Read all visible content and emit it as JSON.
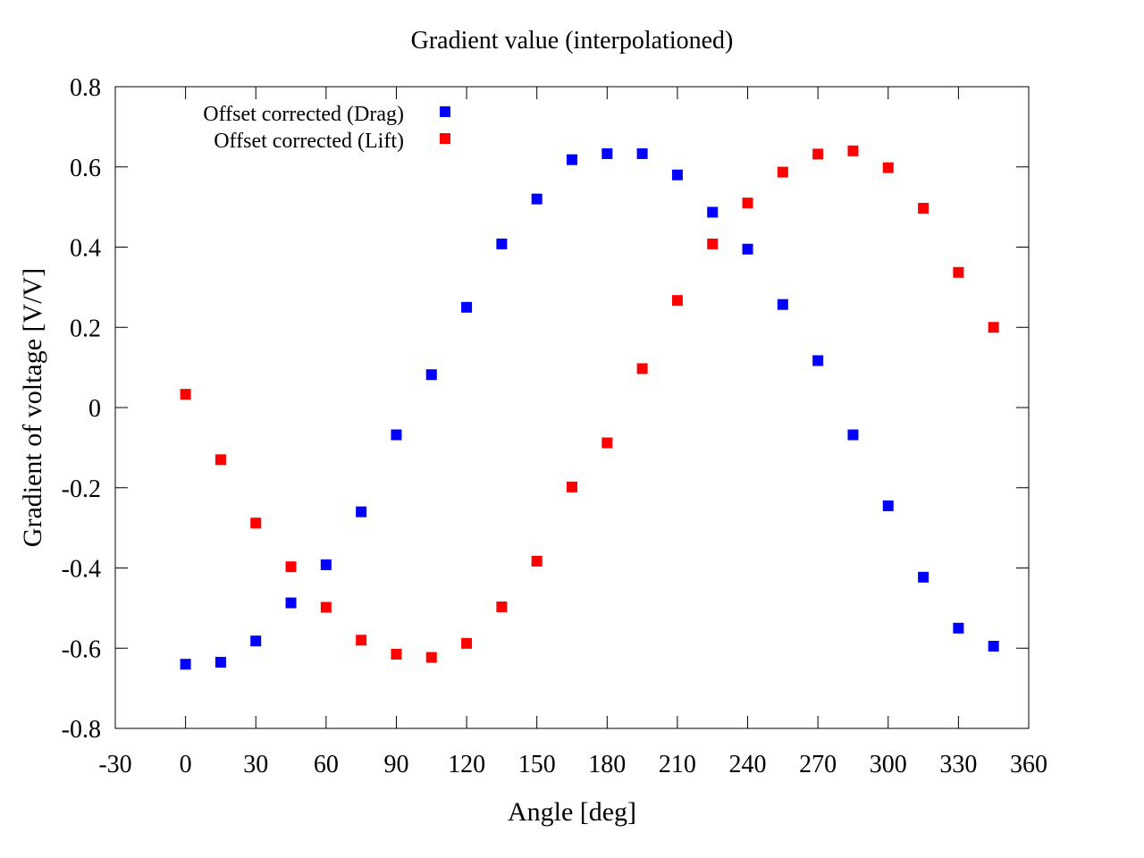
{
  "chart_data": {
    "type": "scatter",
    "title": "Gradient value (interpolationed)",
    "xlabel": "Angle [deg]",
    "ylabel": "Gradient of voltage [V/V]",
    "xlim": [
      -30,
      360
    ],
    "ylim": [
      -0.8,
      0.8
    ],
    "xticks": [
      -30,
      0,
      30,
      60,
      90,
      120,
      150,
      180,
      210,
      240,
      270,
      300,
      330,
      360
    ],
    "yticks": [
      -0.8,
      -0.6,
      -0.4,
      -0.2,
      0,
      0.2,
      0.4,
      0.6,
      0.8
    ],
    "xtick_labels": [
      "-30",
      "0",
      "30",
      "60",
      "90",
      "120",
      "150",
      "180",
      "210",
      "240",
      "270",
      "300",
      "330",
      "360"
    ],
    "ytick_labels": [
      "-0.8",
      "-0.6",
      "-0.4",
      "-0.2",
      "0",
      "0.2",
      "0.4",
      "0.6",
      "0.8"
    ],
    "legend_position": "top-left",
    "grid": false,
    "x": [
      0,
      15,
      30,
      45,
      60,
      75,
      90,
      105,
      120,
      135,
      150,
      165,
      180,
      195,
      210,
      225,
      240,
      255,
      270,
      285,
      300,
      315,
      330,
      345
    ],
    "series": [
      {
        "name": "Offset corrected (Drag)",
        "color": "#0000ff",
        "marker": "square",
        "values": [
          -0.64,
          -0.635,
          -0.582,
          -0.487,
          -0.392,
          -0.26,
          -0.068,
          0.082,
          0.25,
          0.408,
          0.52,
          0.618,
          0.633,
          0.633,
          0.58,
          0.487,
          0.395,
          0.257,
          0.117,
          -0.068,
          -0.245,
          -0.423,
          -0.55,
          -0.595
        ]
      },
      {
        "name": "Offset corrected (Lift)",
        "color": "#ff0000",
        "marker": "square",
        "values": [
          0.033,
          -0.13,
          -0.288,
          -0.397,
          -0.498,
          -0.58,
          -0.615,
          -0.623,
          -0.588,
          -0.497,
          -0.383,
          -0.198,
          -0.088,
          0.097,
          0.267,
          0.408,
          0.51,
          0.587,
          0.632,
          0.64,
          0.598,
          0.497,
          0.337,
          0.2
        ]
      }
    ]
  }
}
